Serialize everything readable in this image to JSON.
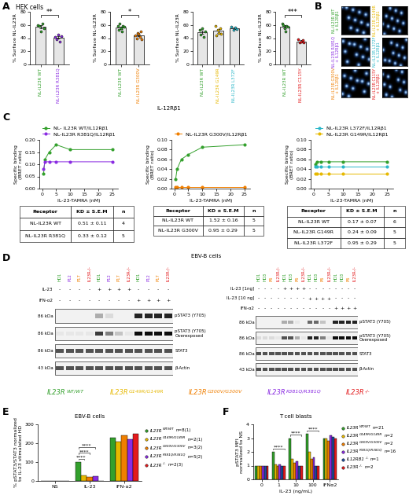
{
  "panel_labels": [
    "A",
    "B",
    "C",
    "D",
    "E",
    "F"
  ],
  "panel_A": {
    "title": "HEK cells",
    "footer": "IL-12Rβ1"
  },
  "chart_data": [
    {
      "type": "bar",
      "ylabel": "% Surface NL-IL23R",
      "ylim": [
        0,
        80
      ],
      "yticks": [
        0,
        20,
        40,
        60,
        80
      ],
      "categories": [
        "NL-IL23R WT",
        "NL-IL23R R381Q"
      ],
      "values": [
        57,
        41
      ],
      "errors": [
        2.2,
        2.0
      ],
      "points": [
        [
          60,
          58,
          50,
          62,
          55
        ],
        [
          42,
          38,
          45,
          35,
          43
        ]
      ],
      "colors": [
        "#33a02c",
        "#8a2be2"
      ],
      "significance": "**"
    },
    {
      "type": "bar",
      "ylabel": "% Surface NL-IL23R",
      "ylim": [
        0,
        80
      ],
      "yticks": [
        0,
        20,
        40,
        60,
        80
      ],
      "categories": [
        "NL-IL23R WT",
        "NL-IL23R G300V"
      ],
      "values": [
        56,
        44
      ],
      "errors": [
        1.8,
        1.5
      ],
      "points": [
        [
          58,
          52,
          62,
          55,
          50,
          59,
          57
        ],
        [
          44,
          40,
          48,
          46,
          42,
          50,
          38
        ]
      ],
      "colors": [
        "#33a02c",
        "#f07f00"
      ],
      "significance": "*"
    },
    {
      "type": "bar",
      "ylabel": "% Surface NL-IL23R",
      "ylim": [
        0,
        80
      ],
      "yticks": [
        0,
        20,
        40,
        60,
        80
      ],
      "categories": [
        "NL-IL23R WT",
        "NL-IL23R G149R",
        "NL-IL23R L372F"
      ],
      "values": [
        49,
        51,
        55
      ],
      "errors": [
        2.5,
        3.0,
        1.5
      ],
      "points": [
        [
          52,
          45,
          55,
          42,
          50
        ],
        [
          58,
          44,
          52,
          48,
          55,
          46
        ],
        [
          57,
          53,
          56,
          54
        ]
      ],
      "colors": [
        "#33a02c",
        "#e6b800",
        "#29b6c8"
      ]
    },
    {
      "type": "bar",
      "ylabel": "% Surface NL-IL23R",
      "ylim": [
        0,
        80
      ],
      "yticks": [
        0,
        20,
        40,
        60,
        80
      ],
      "categories": [
        "NL-IL23R WT",
        "NL-IL23R C115Y"
      ],
      "values": [
        57,
        35
      ],
      "errors": [
        2.5,
        1.5
      ],
      "points": [
        [
          62,
          60,
          55,
          50,
          58,
          57
        ],
        [
          38,
          34,
          35,
          37,
          33
        ]
      ],
      "colors": [
        "#33a02c",
        "#e31a1c"
      ],
      "significance": "***"
    },
    {
      "type": "line",
      "xlabel": "IL-23-TAMRA (nM)",
      "ylabel": "Specific binding\n(BRET ratio)",
      "marker": "circle",
      "legend": "lower center",
      "x": [
        0.5,
        1,
        2.5,
        5,
        10,
        25
      ],
      "xlim": [
        -1,
        27
      ],
      "xticks": [
        0,
        5,
        10,
        15,
        20,
        25
      ],
      "ylim": [
        0,
        0.2
      ],
      "yticks": [
        {
          "value": 0,
          "label": "0.00"
        },
        {
          "value": 0.05,
          "label": "0.05"
        },
        {
          "value": 0.1,
          "label": "0.10"
        },
        {
          "value": 0.15,
          "label": "0.15"
        },
        {
          "value": 0.2,
          "label": "0.20"
        }
      ],
      "series": [
        {
          "name": "NL- IL23R WT/IL12Rβ1",
          "color": "#33a02c",
          "values": [
            0.06,
            0.12,
            0.15,
            0.18,
            0.16,
            0.16
          ]
        },
        {
          "name": "NL-IL23R R381Q/IL12Rβ1",
          "color": "#8a2be2",
          "values": [
            0.08,
            0.11,
            0.11,
            0.11,
            0.11,
            0.11
          ]
        }
      ]
    },
    {
      "type": "line",
      "xlabel": "IL-23-TAMRA (nM)",
      "ylabel": "Specific binding\n(BRET ratio)",
      "marker": "circle",
      "legend": "lower center",
      "x": [
        0.5,
        1,
        2.5,
        5,
        10,
        25
      ],
      "xlim": [
        -1,
        27
      ],
      "xticks": [
        0,
        5,
        10,
        15,
        20,
        25
      ],
      "ylim": [
        0,
        0.1
      ],
      "yticks": [
        {
          "value": 0,
          "label": "0.00"
        },
        {
          "value": 0.02,
          "label": "0.02"
        },
        {
          "value": 0.04,
          "label": "0.04"
        },
        {
          "value": 0.06,
          "label": "0.06"
        },
        {
          "value": 0.08,
          "label": "0.08"
        },
        {
          "value": 0.1,
          "label": "0.10"
        }
      ],
      "series": [
        {
          "name": null,
          "color": "#33a02c",
          "values": [
            0.02,
            0.04,
            0.06,
            0.07,
            0.085,
            0.09
          ]
        },
        {
          "name": "NL-IL23R G300V/IL12Rβ1",
          "color": "#f07f00",
          "values": [
            0.003,
            0.003,
            0.003,
            0.003,
            0.003,
            0.003
          ]
        }
      ]
    },
    {
      "type": "line",
      "xlabel": "IL-23-TAMRA (nM)",
      "ylabel": "Specific binding\n(BRET ratio)",
      "marker": "circle",
      "legend": "lower center",
      "x": [
        0.5,
        1,
        2.5,
        5,
        10,
        25
      ],
      "xlim": [
        -1,
        27
      ],
      "xticks": [
        0,
        5,
        10,
        15,
        20,
        25
      ],
      "ylim": [
        0,
        0.1
      ],
      "yticks": [
        {
          "value": 0,
          "label": "0.00"
        },
        {
          "value": 0.02,
          "label": "0.02"
        },
        {
          "value": 0.04,
          "label": "0.04"
        },
        {
          "value": 0.06,
          "label": "0.06"
        },
        {
          "value": 0.08,
          "label": "0.08"
        },
        {
          "value": 0.1,
          "label": "0.10"
        }
      ],
      "series": [
        {
          "name": null,
          "color": "#33a02c",
          "values": [
            0.05,
            0.055,
            0.055,
            0.055,
            0.055,
            0.055
          ]
        },
        {
          "name": "NL-IL23R L372F/IL12Rβ1",
          "color": "#29b6c8",
          "values": [
            0.045,
            0.045,
            0.045,
            0.045,
            0.045,
            0.045
          ]
        },
        {
          "name": "NL-IL23R G149R/IL12Rβ1",
          "color": "#e6b800",
          "values": [
            0.03,
            0.03,
            0.03,
            0.03,
            0.03,
            0.03
          ]
        }
      ]
    },
    {
      "type": "bar",
      "title": "EBV-B cells",
      "ylabel": "% pSTAT3/STAT3 normalized\nto IL-23 stimulated HD",
      "categories": [
        "NS",
        "IL-23",
        "IFN-α2"
      ],
      "ylim": [
        0,
        300
      ],
      "yticks": [
        0,
        100,
        200,
        300
      ],
      "series": [
        {
          "name": "IL23R",
          "genotype": "WT/WT",
          "n": "n=8(1)",
          "color": "#33a02c",
          "values": [
            1,
            100,
            230
          ]
        },
        {
          "name": "IL23R",
          "genotype": "G149R/G149R",
          "n": "n=2(1)",
          "color": "#e6b800",
          "values": [
            0,
            30,
            210
          ]
        },
        {
          "name": "IL23R",
          "genotype": "G300V/G300V",
          "n": "n=3(2)",
          "color": "#f07f00",
          "values": [
            0,
            20,
            240
          ]
        },
        {
          "name": "IL23R",
          "genotype": "R381Q/R381Q",
          "n": "n=5(2)",
          "color": "#8a2be2",
          "values": [
            1,
            25,
            220
          ]
        },
        {
          "name": "IL23R",
          "genotype": "-/-",
          "n": "n=2(3)",
          "color": "#e31a1c",
          "values": [
            0,
            0,
            250
          ]
        }
      ],
      "significance": [
        {
          "category": "IL-23",
          "pair": [
            0,
            1
          ],
          "label": "****"
        },
        {
          "category": "IL-23",
          "pair": [
            0,
            2
          ],
          "label": "****"
        },
        {
          "category": "IL-23",
          "pair": [
            0,
            3
          ],
          "label": "****"
        }
      ]
    },
    {
      "type": "bar",
      "title": "T cell blasts",
      "xlabel": "IL-23 (ng/mL)",
      "ylabel": "pSTAT3 MFI\nnormalized to NS",
      "categories": [
        "0",
        "1",
        "10",
        "100",
        "IFNα2"
      ],
      "ylim": [
        0,
        4
      ],
      "yticks": [
        0,
        1,
        2,
        3,
        4
      ],
      "series": [
        {
          "name": "IL23R",
          "genotype": "WT/WT",
          "n": "n=21",
          "color": "#33a02c",
          "values": [
            1,
            2.0,
            3.0,
            3.3,
            3.0
          ]
        },
        {
          "name": "IL23R",
          "genotype": "G149R/G149R",
          "n": "n=2",
          "color": "#e6b800",
          "values": [
            1,
            1.1,
            1.5,
            2.0,
            3.0
          ]
        },
        {
          "name": "IL23R",
          "genotype": "G300V/G300V",
          "n": "n=2",
          "color": "#f07f00",
          "values": [
            1,
            1.0,
            1.2,
            1.5,
            2.8
          ]
        },
        {
          "name": "IL23R",
          "genotype": "R381Q/R381Q",
          "n": "n=16",
          "color": "#8a2be2",
          "values": [
            1,
            1.1,
            1.3,
            1.6,
            3.2
          ]
        },
        {
          "name": "IL12RB1",
          "genotype": "-/-",
          "n": "n=1",
          "color": "#1f4e9c",
          "values": [
            1,
            1,
            1,
            1,
            3.1
          ]
        },
        {
          "name": "IL23R",
          "genotype": "-/-",
          "n": "n=2",
          "color": "#e31a1c",
          "values": [
            1,
            1,
            1,
            1,
            3.0
          ]
        }
      ],
      "significance": [
        {
          "category": "1",
          "label": "****"
        },
        {
          "category": "10",
          "label": "****"
        },
        {
          "category": "100",
          "label": "****"
        }
      ]
    }
  ],
  "images": [
    {
      "label": "NL-IL23R WT\n+ IL12Rβ1",
      "color": "#33a02c"
    },
    {
      "label": "NL-IL23R R381Q\n+ IL12Rβ1",
      "color": "#8a2be2"
    },
    {
      "label": "NL-IL23R G300V\n+ IL12Rβ1",
      "color": "#f07f00"
    },
    {
      "label": "NL-IL23R G149R\n+ IL12Rβ1",
      "color": "#e6b800"
    },
    {
      "label": "NL-IL23R L372F\n+ IL12Rβ1",
      "color": "#29b6c8"
    },
    {
      "label": "NL-IL23R C115Y\n+ IL12Rβ1",
      "color": "#e31a1c"
    }
  ],
  "tables": [
    {
      "header": [
        "Receptor",
        "KD ± S.E.M",
        "n"
      ],
      "rows": [
        [
          "NL-IL23R WT",
          "0.51 ± 0.11",
          "4"
        ],
        [
          "NL-IL23R R381Q",
          "0.33 ± 0.12",
          "5"
        ]
      ]
    },
    {
      "header": [
        "Receptor",
        "KD ± S.E.M",
        "n"
      ],
      "rows": [
        [
          "NL-IL23R WT",
          "1.52 ± 0.16",
          "5"
        ],
        [
          "NL-IL23R G300V",
          "0.95 ± 0.29",
          "5"
        ]
      ]
    },
    {
      "header": [
        "Receptor",
        "KD ± S.E.M",
        "n"
      ],
      "rows": [
        [
          "NL-IL23R WT",
          "0.17 ± 0.07",
          "6"
        ],
        [
          "NL-IL23R G149R",
          "0.24 ± 0.09",
          "5"
        ],
        [
          "NL-IL23R L372F",
          "0.95 ± 0.29",
          "5"
        ]
      ]
    }
  ],
  "panel_D": {
    "title": "EBV-B cells",
    "blots": [
      {
        "lanes": [
          "HD1",
          "P12",
          "P17",
          "IL23R-/-",
          "HD1",
          "P12",
          "P17",
          "IL23R-/-",
          "HD1",
          "P12",
          "P17",
          "IL23R-/-"
        ],
        "lane_colors": [
          "#33a02c",
          "#8a2be2",
          "#f07f00",
          "#e31a1c",
          "#33a02c",
          "#8a2be2",
          "#f07f00",
          "#e31a1c",
          "#33a02c",
          "#8a2be2",
          "#f07f00",
          "#e31a1c"
        ],
        "conditions": [
          {
            "name": "IL-23",
            "values": [
              "-",
              "-",
              "-",
              "-",
              "+",
              "+",
              "+",
              "+",
              "-",
              "-",
              "-",
              "-"
            ]
          },
          {
            "name": "IFN-α2",
            "values": [
              "-",
              "-",
              "-",
              "-",
              "-",
              "-",
              "-",
              "-",
              "+",
              "+",
              "+",
              "+"
            ]
          }
        ],
        "bands": [
          {
            "name": "pSTAT3 (Y705)",
            "mw": "86 kDa",
            "intensity": [
              0,
              0,
              0,
              0,
              0.3,
              0.1,
              0,
              0,
              0.9,
              0.9,
              0.9,
              0.9
            ]
          },
          {
            "name": "pSTAT3 (Y705)\nOverexposed",
            "mw": "86 kDa",
            "intensity": [
              0.05,
              0.05,
              0.05,
              0.05,
              0.8,
              0.5,
              0.2,
              0.05,
              1,
              1,
              1,
              1
            ]
          },
          {
            "name": "STAT3",
            "mw": "86 kDa",
            "intensity": [
              0.7,
              0.7,
              0.7,
              0.7,
              0.7,
              0.7,
              0.7,
              0.7,
              0.7,
              0.7,
              0.7,
              0.7
            ]
          },
          {
            "name": "β-Actin",
            "mw": "43 kDa",
            "intensity": [
              0.7,
              0.7,
              0.7,
              0.7,
              0.7,
              0.7,
              0.7,
              0.7,
              0.7,
              0.7,
              0.7,
              0.7
            ]
          }
        ]
      },
      {
        "lanes": [
          "HD1",
          "HD3",
          "P6",
          "IL23R-/-",
          "HD1",
          "HD3",
          "P6",
          "IL23R-/-",
          "HD1",
          "HD3",
          "P6",
          "IL23R-/-",
          "HD1",
          "HD3",
          "P6",
          "IL23R-/-"
        ],
        "lane_colors": [
          "#33a02c",
          "#33a02c",
          "#f07f00",
          "#e31a1c",
          "#33a02c",
          "#33a02c",
          "#f07f00",
          "#e31a1c",
          "#33a02c",
          "#33a02c",
          "#f07f00",
          "#e31a1c",
          "#33a02c",
          "#33a02c",
          "#f07f00",
          "#e31a1c"
        ],
        "conditions": [
          {
            "name": "IL-23 [1ng]",
            "values": [
              "-",
              "-",
              "-",
              "-",
              "+",
              "+",
              "+",
              "+",
              "-",
              "-",
              "-",
              "-",
              "-",
              "-",
              "-",
              "-"
            ]
          },
          {
            "name": "IL-23 [10 ng]",
            "values": [
              "-",
              "-",
              "-",
              "-",
              "-",
              "-",
              "-",
              "-",
              "+",
              "+",
              "+",
              "+",
              "-",
              "-",
              "-",
              "-"
            ]
          },
          {
            "name": "IFN-α2",
            "values": [
              "-",
              "-",
              "-",
              "-",
              "-",
              "-",
              "-",
              "-",
              "-",
              "-",
              "-",
              "-",
              "+",
              "+",
              "+",
              "+"
            ]
          }
        ],
        "bands": [
          {
            "name": "pSTAT3 (Y705)",
            "mw": "86 kDa",
            "intensity": [
              0,
              0,
              0,
              0,
              0.3,
              0.3,
              0.05,
              0,
              0.6,
              0.6,
              0.2,
              0,
              0.9,
              0.9,
              0.9,
              0.9
            ]
          },
          {
            "name": "pSTAT3 (Y705)\nOverexposed",
            "mw": "86 kDa",
            "intensity": [
              0.1,
              0.1,
              0.1,
              0.05,
              0.7,
              0.7,
              0.3,
              0.05,
              0.9,
              0.9,
              0.5,
              0.05,
              1,
              1,
              1,
              1
            ]
          },
          {
            "name": "STAT3",
            "mw": "86 kDa",
            "intensity": [
              0.7,
              0.7,
              0.7,
              0.7,
              0.7,
              0.7,
              0.7,
              0.7,
              0.7,
              0.7,
              0.7,
              0.7,
              0.7,
              0.7,
              0.7,
              0.7
            ]
          },
          {
            "name": "β-Actin",
            "mw": "43 kDa",
            "intensity": [
              0.7,
              0.7,
              0.7,
              0.7,
              0.7,
              0.7,
              0.7,
              0.7,
              0.7,
              0.7,
              0.7,
              0.7,
              0.7,
              0.7,
              0.7,
              0.7
            ]
          }
        ]
      }
    ],
    "genotype_key": [
      {
        "name": "IL23R",
        "genotype": "WT/WT",
        "color": "#33a02c"
      },
      {
        "name": "IL23R",
        "genotype": "G149R/G149R",
        "color": "#e6b800"
      },
      {
        "name": "IL23R",
        "genotype": "G300V/G300V",
        "color": "#f07f00"
      },
      {
        "name": "IL23R",
        "genotype": "R381Q/R381Q",
        "color": "#8a2be2"
      },
      {
        "name": "IL23R",
        "genotype": "-/-",
        "color": "#e31a1c"
      }
    ]
  }
}
